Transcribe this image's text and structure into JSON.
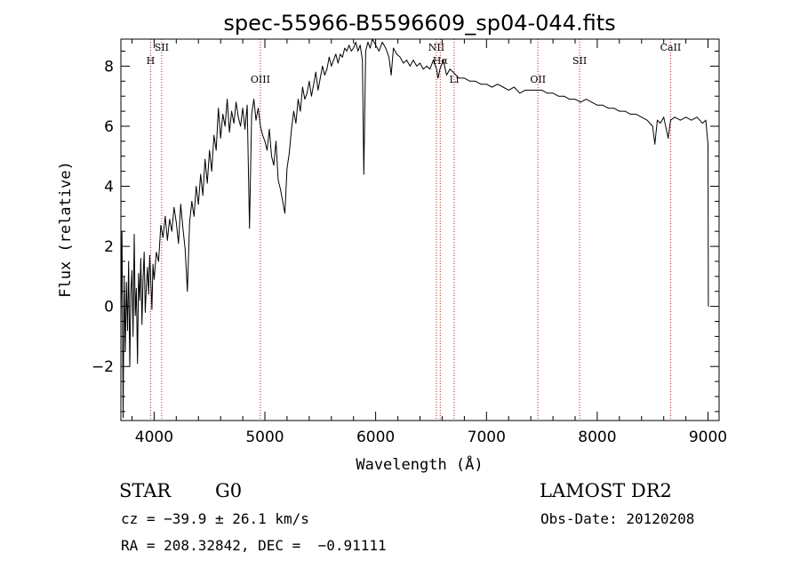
{
  "chart_data": {
    "type": "line",
    "title": "spec-55966-B5596609_sp04-044.fits",
    "xlabel": "Wavelength (Å)",
    "ylabel": "Flux (relative)",
    "xlim": [
      3700,
      9100
    ],
    "ylim": [
      -3.8,
      8.9
    ],
    "xticks": [
      4000,
      5000,
      6000,
      7000,
      8000,
      9000
    ],
    "yticks": [
      -2,
      0,
      2,
      4,
      6,
      8
    ],
    "grid": false,
    "series": [
      {
        "color": "#000000",
        "x": [
          3700,
          3710,
          3720,
          3730,
          3740,
          3750,
          3760,
          3770,
          3780,
          3790,
          3800,
          3810,
          3820,
          3830,
          3840,
          3850,
          3860,
          3870,
          3880,
          3890,
          3900,
          3910,
          3920,
          3930,
          3940,
          3950,
          3960,
          3970,
          3980,
          3990,
          4000,
          4020,
          4040,
          4060,
          4080,
          4100,
          4120,
          4140,
          4160,
          4180,
          4200,
          4220,
          4240,
          4260,
          4280,
          4300,
          4320,
          4340,
          4360,
          4380,
          4400,
          4420,
          4440,
          4460,
          4480,
          4500,
          4520,
          4540,
          4560,
          4580,
          4600,
          4620,
          4640,
          4660,
          4680,
          4700,
          4720,
          4740,
          4760,
          4780,
          4800,
          4820,
          4840,
          4861,
          4880,
          4900,
          4920,
          4940,
          4960,
          4980,
          5000,
          5020,
          5040,
          5060,
          5080,
          5100,
          5120,
          5140,
          5160,
          5180,
          5200,
          5220,
          5240,
          5260,
          5280,
          5300,
          5320,
          5340,
          5360,
          5380,
          5400,
          5420,
          5440,
          5460,
          5480,
          5500,
          5520,
          5540,
          5560,
          5580,
          5600,
          5620,
          5640,
          5660,
          5680,
          5700,
          5720,
          5740,
          5760,
          5780,
          5800,
          5820,
          5840,
          5860,
          5880,
          5893,
          5910,
          5930,
          5950,
          5970,
          6000,
          6030,
          6060,
          6090,
          6120,
          6140,
          6160,
          6190,
          6220,
          6250,
          6280,
          6310,
          6340,
          6370,
          6400,
          6430,
          6460,
          6490,
          6520,
          6550,
          6563,
          6580,
          6610,
          6640,
          6670,
          6700,
          6750,
          6800,
          6850,
          6900,
          6950,
          7000,
          7050,
          7100,
          7150,
          7200,
          7250,
          7300,
          7350,
          7400,
          7450,
          7500,
          7550,
          7600,
          7650,
          7700,
          7750,
          7800,
          7850,
          7900,
          7950,
          8000,
          8050,
          8100,
          8150,
          8200,
          8250,
          8300,
          8350,
          8400,
          8450,
          8500,
          8520,
          8542,
          8570,
          8600,
          8640,
          8662,
          8700,
          8750,
          8800,
          8850,
          8900,
          8950,
          8980,
          9000,
          9003
        ],
        "y": [
          -0.5,
          2.5,
          -3.7,
          1.0,
          -1.5,
          0.8,
          -0.8,
          1.5,
          -2.0,
          0.5,
          1.2,
          -1.0,
          2.4,
          -0.3,
          0.6,
          -1.9,
          1.1,
          0.2,
          1.6,
          -0.6,
          0.9,
          1.8,
          -0.2,
          0.7,
          1.3,
          0.4,
          1.7,
          0.8,
          -0.1,
          1.4,
          0.9,
          1.8,
          1.5,
          2.7,
          2.3,
          3.0,
          2.2,
          2.9,
          2.5,
          3.3,
          2.8,
          2.1,
          3.4,
          2.6,
          1.9,
          0.5,
          2.8,
          3.5,
          3.0,
          4.0,
          3.4,
          4.4,
          3.7,
          4.9,
          4.1,
          5.2,
          4.5,
          5.7,
          5.2,
          6.6,
          5.6,
          6.4,
          6.0,
          6.9,
          5.8,
          6.5,
          6.1,
          6.8,
          6.3,
          6.0,
          6.6,
          5.9,
          6.7,
          2.6,
          6.4,
          6.9,
          6.2,
          6.6,
          6.0,
          5.7,
          5.5,
          5.2,
          5.9,
          5.0,
          4.7,
          5.5,
          4.2,
          3.9,
          3.5,
          3.1,
          4.6,
          5.1,
          5.9,
          6.5,
          6.1,
          6.9,
          6.5,
          7.3,
          6.9,
          7.1,
          7.5,
          7.0,
          7.4,
          7.8,
          7.2,
          7.6,
          8.0,
          7.7,
          7.9,
          8.3,
          8.0,
          8.2,
          8.4,
          8.1,
          8.4,
          8.3,
          8.6,
          8.5,
          8.7,
          8.5,
          8.6,
          8.8,
          8.5,
          8.7,
          8.2,
          4.4,
          8.5,
          8.8,
          8.6,
          8.9,
          8.7,
          8.5,
          8.8,
          8.6,
          8.3,
          7.7,
          8.6,
          8.4,
          8.3,
          8.1,
          8.2,
          8.0,
          8.2,
          8.0,
          8.1,
          7.9,
          8.0,
          7.9,
          8.2,
          7.9,
          7.6,
          7.9,
          8.2,
          7.7,
          7.9,
          7.8,
          7.6,
          7.6,
          7.5,
          7.5,
          7.4,
          7.4,
          7.3,
          7.4,
          7.3,
          7.2,
          7.3,
          7.1,
          7.2,
          7.2,
          7.2,
          7.2,
          7.1,
          7.1,
          7.0,
          7.0,
          6.9,
          6.9,
          6.8,
          6.9,
          6.8,
          6.7,
          6.7,
          6.6,
          6.6,
          6.5,
          6.5,
          6.4,
          6.4,
          6.3,
          6.2,
          6.0,
          5.4,
          6.2,
          6.1,
          6.3,
          5.6,
          6.2,
          6.3,
          6.2,
          6.3,
          6.2,
          6.3,
          6.1,
          6.2,
          5.4,
          0.0
        ]
      }
    ],
    "lines": [
      {
        "label": "H",
        "x": 3968
      },
      {
        "label": "SII",
        "x": 4068
      },
      {
        "label": "OIII",
        "x": 4959
      },
      {
        "label": "NII",
        "x": 6548
      },
      {
        "label": "Hα",
        "x": 6583
      },
      {
        "label": "Li",
        "x": 6708
      },
      {
        "label": "OII",
        "x": 7465
      },
      {
        "label": "SII",
        "x": 7841
      },
      {
        "label": "CaII",
        "x": 8662
      }
    ]
  },
  "info": {
    "class": "STAR",
    "subclass": "G0",
    "survey": "LAMOST DR2",
    "cz": "cz = −39.9 ± 26.1 km/s",
    "obs_date": "Obs-Date: 20120208",
    "coords": "RA = 208.32842, DEC =  −0.91111"
  }
}
